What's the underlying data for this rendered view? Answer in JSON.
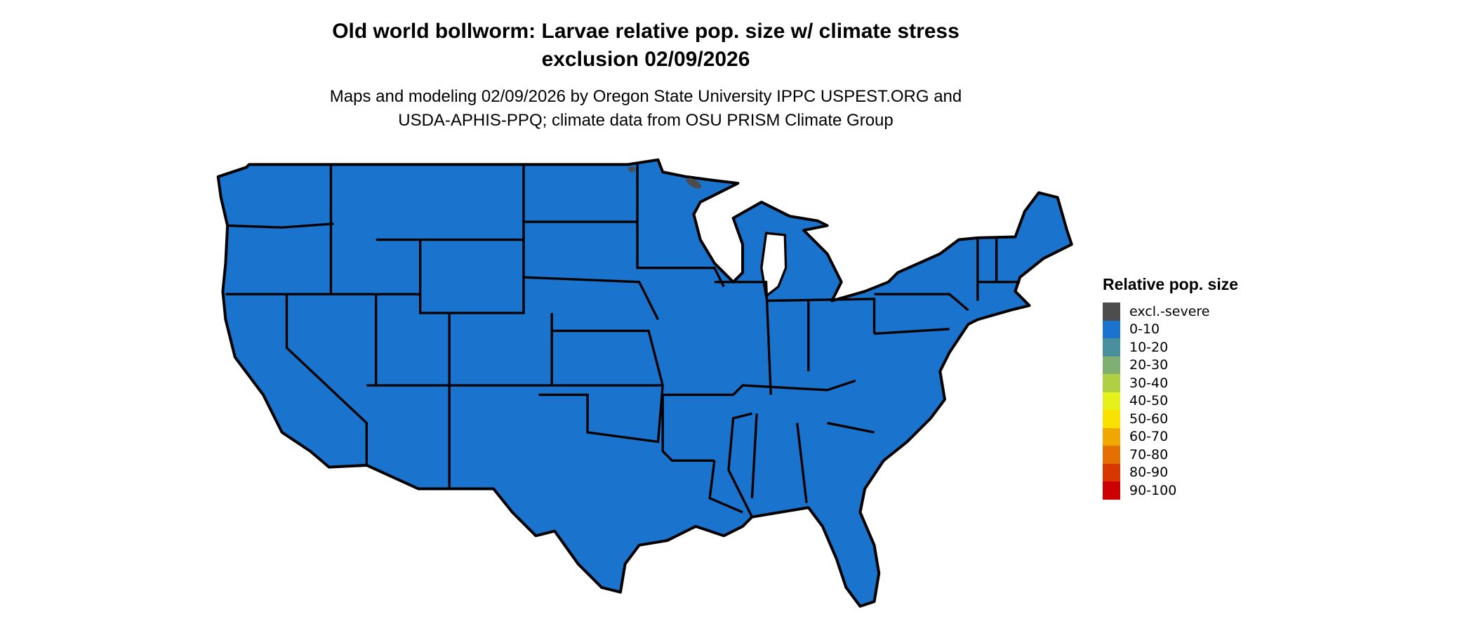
{
  "title_line1": "Old world bollworm: Larvae relative pop. size w/ climate stress",
  "title_line2": "exclusion 02/09/2026",
  "subtitle_line1": "Maps and modeling 02/09/2026 by Oregon State University IPPC USPEST.ORG and",
  "subtitle_line2": "USDA-APHIS-PPQ; climate data from OSU PRISM Climate Group",
  "map": {
    "region": "contiguous United States",
    "dominant_class": "0-10",
    "fill_color": "#1a73cc",
    "excluded_color": "#4d4d4d",
    "border_color": "#000000"
  },
  "legend": {
    "title": "Relative pop. size",
    "items": [
      {
        "label": "excl.-severe",
        "color": "#4d4d4d"
      },
      {
        "label": "0-10",
        "color": "#1a73cc"
      },
      {
        "label": "10-20",
        "color": "#4a8f9e"
      },
      {
        "label": "20-30",
        "color": "#7fb071"
      },
      {
        "label": "30-40",
        "color": "#b0d044"
      },
      {
        "label": "40-50",
        "color": "#e6f01a"
      },
      {
        "label": "50-60",
        "color": "#f8e000"
      },
      {
        "label": "60-70",
        "color": "#f0a800"
      },
      {
        "label": "70-80",
        "color": "#e47000"
      },
      {
        "label": "80-90",
        "color": "#d83800"
      },
      {
        "label": "90-100",
        "color": "#cc0000"
      }
    ]
  }
}
